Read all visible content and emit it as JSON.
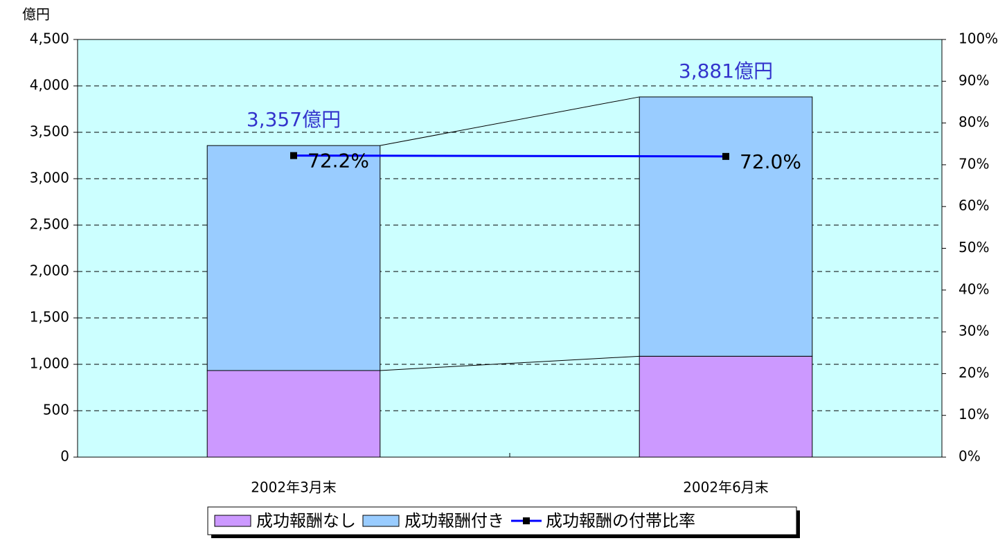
{
  "chart_data": {
    "type": "bar",
    "stacked": true,
    "y_axis_label": "億円",
    "categories": [
      "2002年3月末",
      "2002年6月末"
    ],
    "series": [
      {
        "name": "成功報酬なし",
        "color": "#cc99ff",
        "values": [
          933,
          1087
        ]
      },
      {
        "name": "成功報酬付き",
        "color": "#99ccff",
        "values": [
          2424,
          2794
        ]
      },
      {
        "name": "成功報酬の付帯比率",
        "type": "line",
        "axis": "y2",
        "color": "#0000ff",
        "marker_color": "#000000",
        "values": [
          72.2,
          72.0
        ],
        "value_labels": [
          "72.2%",
          "72.0%"
        ]
      }
    ],
    "totals": [
      3357,
      3881
    ],
    "total_labels": [
      "3,357億円",
      "3,881億円"
    ],
    "ylim": [
      0,
      4500
    ],
    "yticks": [
      0,
      500,
      {
        "value": 1000,
        "label": "1,000"
      },
      {
        "value": 1500,
        "label": "1,500"
      },
      {
        "value": 2000,
        "label": "2,000"
      },
      {
        "value": 2500,
        "label": "2,500"
      },
      {
        "value": 3000,
        "label": "3,000"
      },
      {
        "value": 3500,
        "label": "3,500"
      },
      {
        "value": 4000,
        "label": "4,000"
      },
      {
        "value": 4500,
        "label": "4,500"
      }
    ],
    "y2lim": [
      0,
      100
    ],
    "y2ticks": [
      {
        "value": 0,
        "label": "0%"
      },
      {
        "value": 10,
        "label": "10%"
      },
      {
        "value": 20,
        "label": "20%"
      },
      {
        "value": 30,
        "label": "30%"
      },
      {
        "value": 40,
        "label": "40%"
      },
      {
        "value": 50,
        "label": "50%"
      },
      {
        "value": 60,
        "label": "60%"
      },
      {
        "value": 70,
        "label": "70%"
      },
      {
        "value": 80,
        "label": "80%"
      },
      {
        "value": 90,
        "label": "90%"
      },
      {
        "value": 100,
        "label": "100%"
      }
    ],
    "grid": true,
    "plot_background": "#ccffff",
    "legend": "bottom"
  }
}
